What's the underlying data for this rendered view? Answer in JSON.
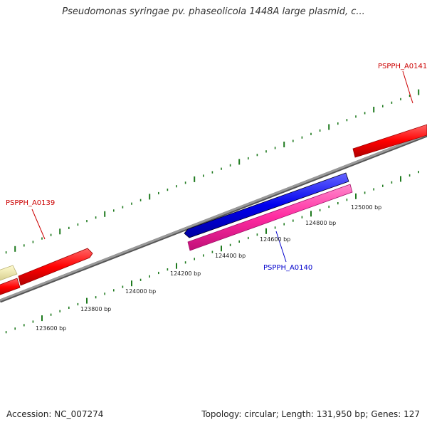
{
  "title": "Pseudomonas syringae pv. phaseolicola 1448A large plasmid, c...",
  "footer": {
    "accession": "Accession: NC_007274",
    "summary": "Topology: circular; Length: 131,950 bp; Genes: 127"
  },
  "colors": {
    "backbone": "#7f7f7f",
    "tick": "#1e7a1e",
    "forward_gene": "#ff0000",
    "reverse_gene": "#0000ee",
    "other_gene": "#ff2aa0",
    "pale_gene": "#eee8a0",
    "label_red": "#cc0000",
    "label_blue": "#0000cc"
  },
  "gene_labels": [
    {
      "id": "a0139",
      "text": "PSPPH_A0139",
      "color": "#cc0000"
    },
    {
      "id": "a0140",
      "text": "PSPPH_A0140",
      "color": "#0000cc"
    },
    {
      "id": "a0141",
      "text": "PSPPH_A0141",
      "color": "#cc0000"
    }
  ],
  "bp_labels": [
    "123600 bp",
    "123800 bp",
    "124000 bp",
    "124200 bp",
    "124400 bp",
    "124600 bp",
    "124800 bp",
    "125000 bp"
  ]
}
